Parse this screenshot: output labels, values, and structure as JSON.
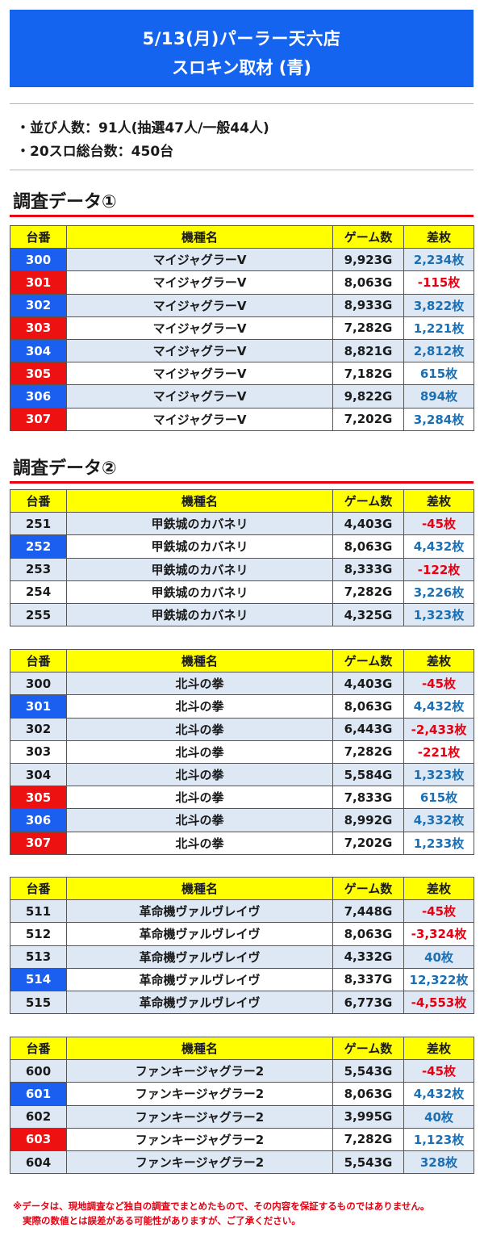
{
  "header": {
    "line1": "5/13(月)パーラー天六店",
    "line2": "スロキン取材 (青)"
  },
  "info": [
    "・並び人数：91人(抽選47人/一般44人)",
    "・20スロ総台数：450台"
  ],
  "sections": [
    "調査データ①",
    "調査データ②"
  ],
  "columns": [
    "台番",
    "機種名",
    "ゲーム数",
    "差枚"
  ],
  "tables": [
    [
      [
        "300",
        "マイジャグラーV",
        "9,923G",
        "2,234枚",
        "blue"
      ],
      [
        "301",
        "マイジャグラーV",
        "8,063G",
        "-115枚",
        "red"
      ],
      [
        "302",
        "マイジャグラーV",
        "8,933G",
        "3,822枚",
        "blue"
      ],
      [
        "303",
        "マイジャグラーV",
        "7,282G",
        "1,221枚",
        "red"
      ],
      [
        "304",
        "マイジャグラーV",
        "8,821G",
        "2,812枚",
        "blue"
      ],
      [
        "305",
        "マイジャグラーV",
        "7,182G",
        "615枚",
        "red"
      ],
      [
        "306",
        "マイジャグラーV",
        "9,822G",
        "894枚",
        "blue"
      ],
      [
        "307",
        "マイジャグラーV",
        "7,202G",
        "3,284枚",
        "red"
      ]
    ],
    [
      [
        "251",
        "甲鉄城のカバネリ",
        "4,403G",
        "-45枚",
        ""
      ],
      [
        "252",
        "甲鉄城のカバネリ",
        "8,063G",
        "4,432枚",
        "blue"
      ],
      [
        "253",
        "甲鉄城のカバネリ",
        "8,333G",
        "-122枚",
        ""
      ],
      [
        "254",
        "甲鉄城のカバネリ",
        "7,282G",
        "3,226枚",
        ""
      ],
      [
        "255",
        "甲鉄城のカバネリ",
        "4,325G",
        "1,323枚",
        ""
      ]
    ],
    [
      [
        "300",
        "北斗の拳",
        "4,403G",
        "-45枚",
        ""
      ],
      [
        "301",
        "北斗の拳",
        "8,063G",
        "4,432枚",
        "blue"
      ],
      [
        "302",
        "北斗の拳",
        "6,443G",
        "-2,433枚",
        ""
      ],
      [
        "303",
        "北斗の拳",
        "7,282G",
        "-221枚",
        ""
      ],
      [
        "304",
        "北斗の拳",
        "5,584G",
        "1,323枚",
        ""
      ],
      [
        "305",
        "北斗の拳",
        "7,833G",
        "615枚",
        "red"
      ],
      [
        "306",
        "北斗の拳",
        "8,992G",
        "4,332枚",
        "blue"
      ],
      [
        "307",
        "北斗の拳",
        "7,202G",
        "1,233枚",
        "red"
      ]
    ],
    [
      [
        "511",
        "革命機ヴァルヴレイヴ",
        "7,448G",
        "-45枚",
        ""
      ],
      [
        "512",
        "革命機ヴァルヴレイヴ",
        "8,063G",
        "-3,324枚",
        ""
      ],
      [
        "513",
        "革命機ヴァルヴレイヴ",
        "4,332G",
        "40枚",
        ""
      ],
      [
        "514",
        "革命機ヴァルヴレイヴ",
        "8,337G",
        "12,322枚",
        "blue"
      ],
      [
        "515",
        "革命機ヴァルヴレイヴ",
        "6,773G",
        "-4,553枚",
        ""
      ]
    ],
    [
      [
        "600",
        "ファンキージャグラー2",
        "5,543G",
        "-45枚",
        ""
      ],
      [
        "601",
        "ファンキージャグラー2",
        "8,063G",
        "4,432枚",
        "blue"
      ],
      [
        "602",
        "ファンキージャグラー2",
        "3,995G",
        "40枚",
        ""
      ],
      [
        "603",
        "ファンキージャグラー2",
        "7,282G",
        "1,123枚",
        "red"
      ],
      [
        "604",
        "ファンキージャグラー2",
        "5,543G",
        "328枚",
        ""
      ]
    ]
  ],
  "note": [
    "※データは、現地調査など独自の調査でまとめたもので、その内容を保証するものではありません。",
    "実際の数値とは誤差がある可能性がありますが、ご了承ください。"
  ]
}
